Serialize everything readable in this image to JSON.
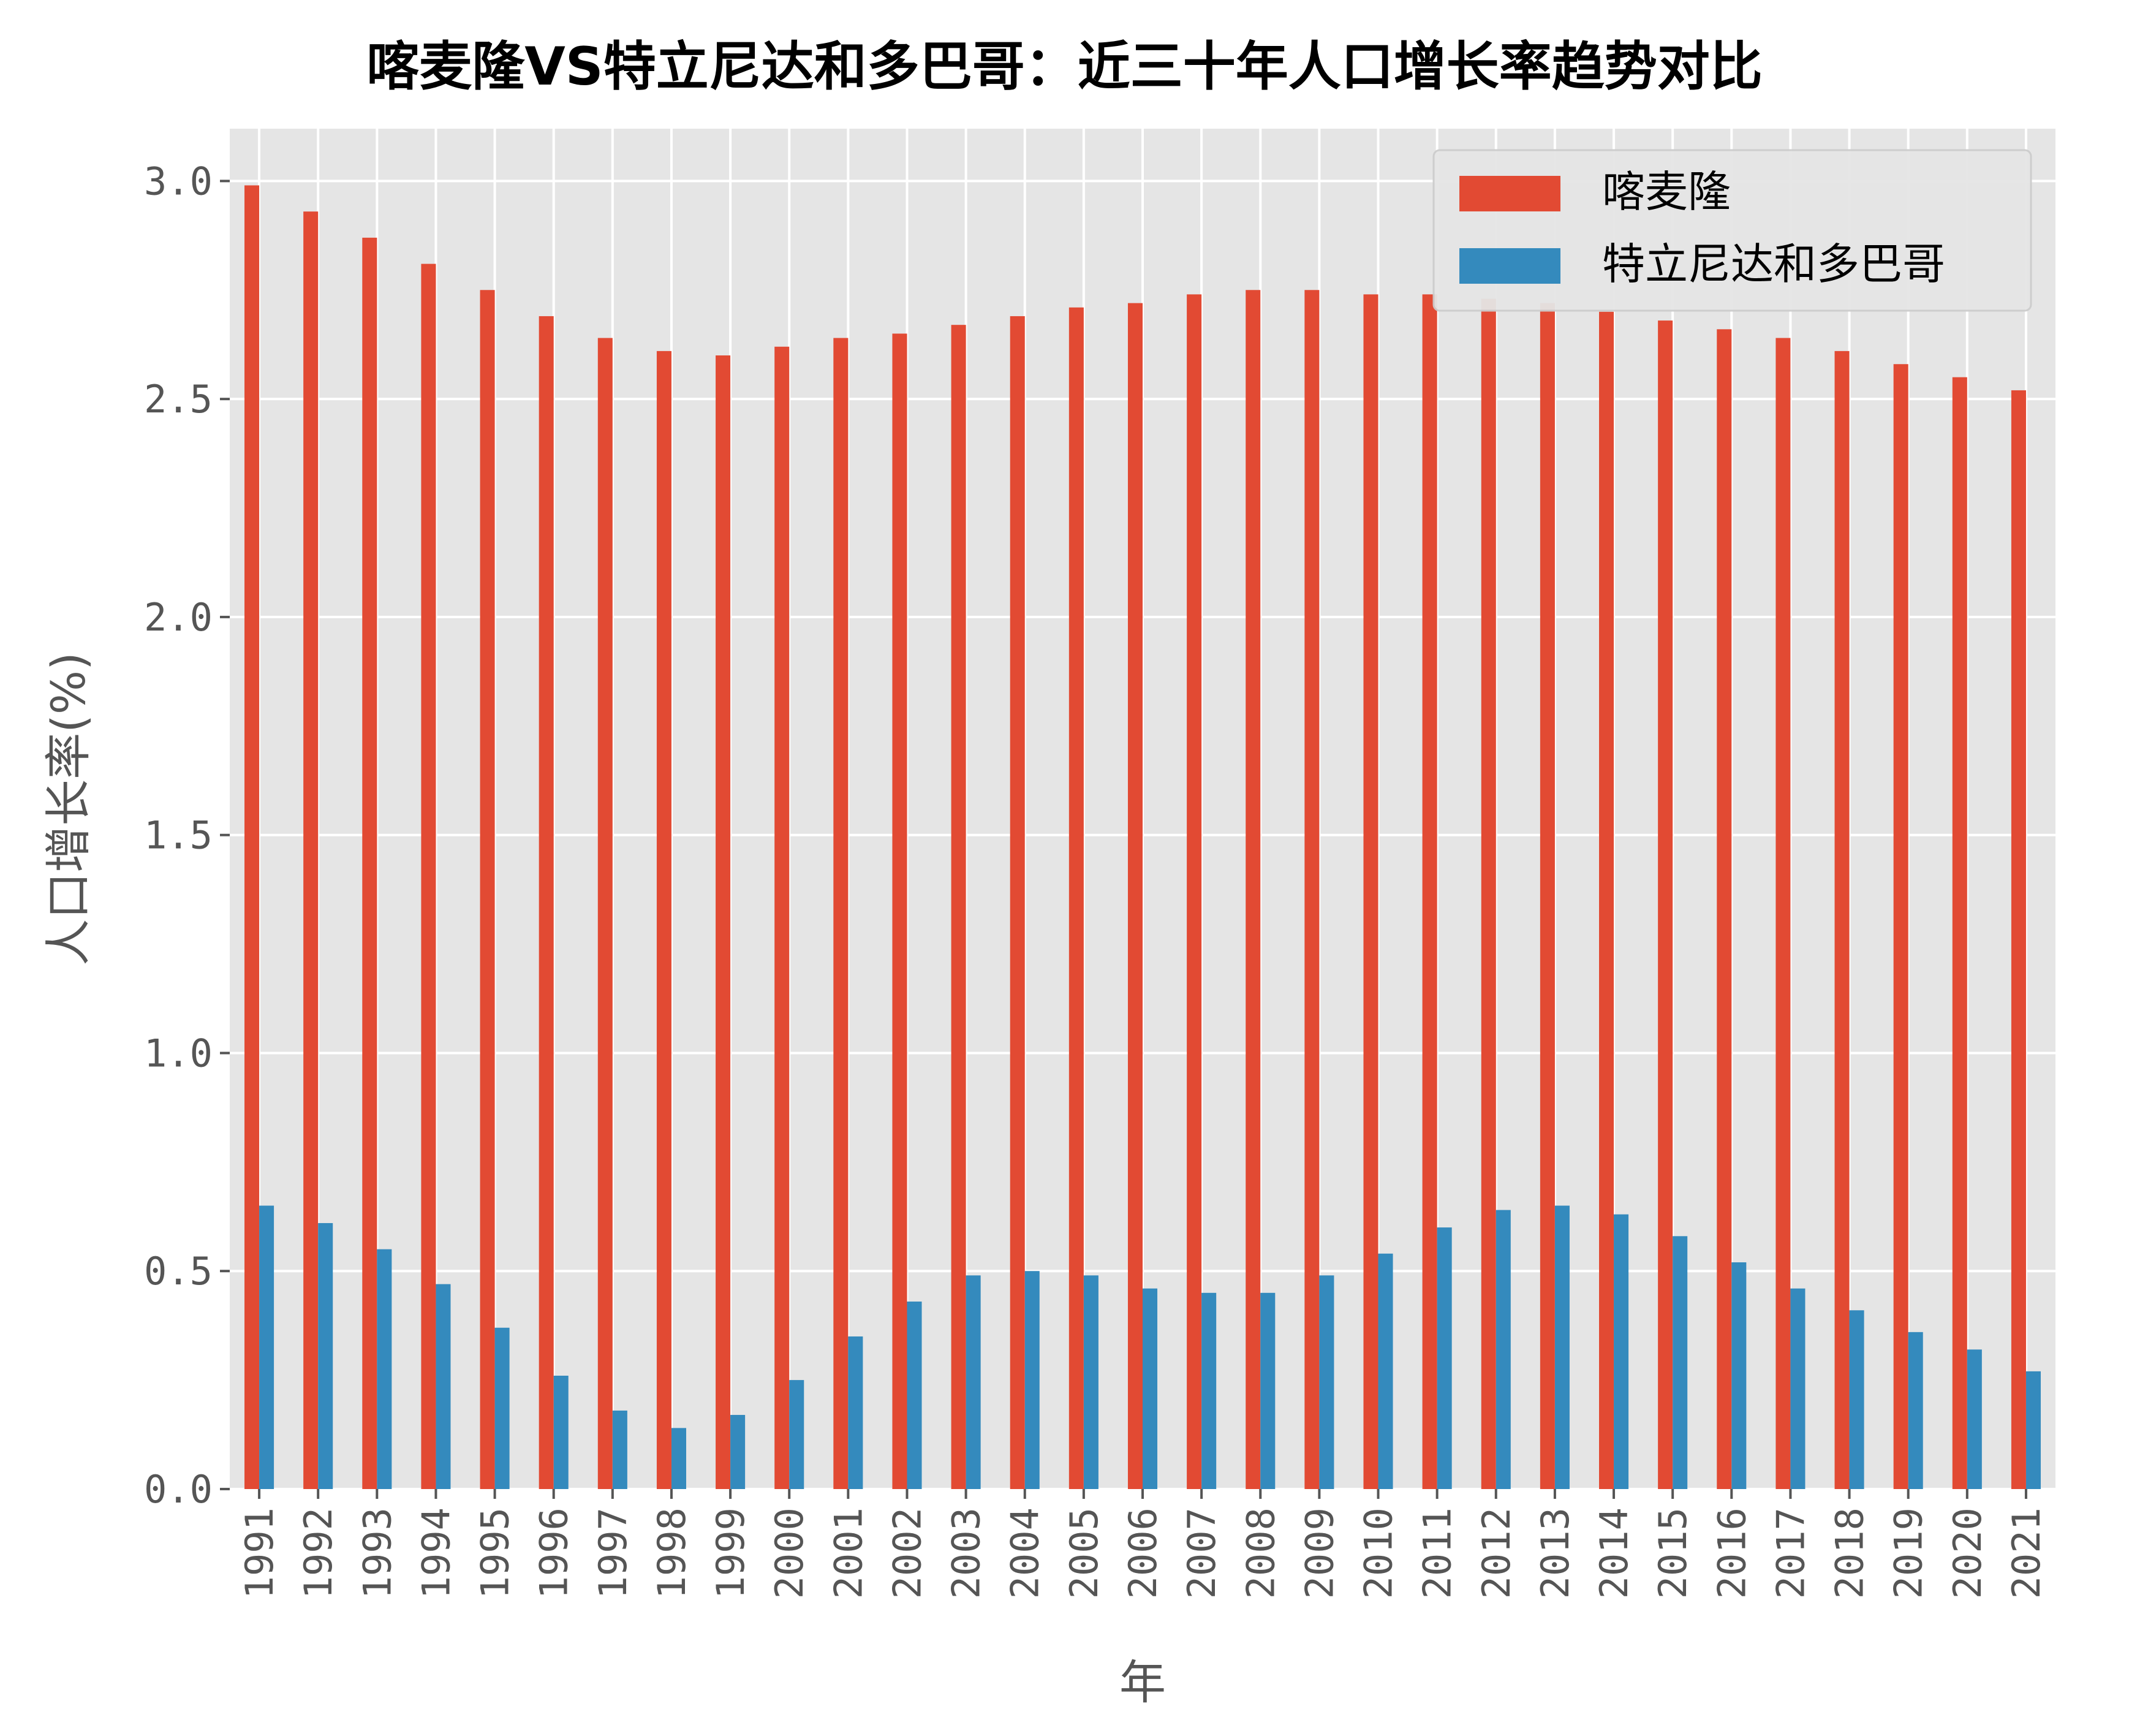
{
  "chart_data": {
    "type": "bar",
    "title": "喀麦隆VS特立尼达和多巴哥：近三十年人口增长率趋势对比",
    "xlabel": "年",
    "ylabel": "人口增长率(%)",
    "ylim": [
      0,
      3.12
    ],
    "yticks": [
      "0.0",
      "0.5",
      "1.0",
      "1.5",
      "2.0",
      "2.5",
      "3.0"
    ],
    "grid": true,
    "legend_position": "top-right",
    "categories": [
      "1991",
      "1992",
      "1993",
      "1994",
      "1995",
      "1996",
      "1997",
      "1998",
      "1999",
      "2000",
      "2001",
      "2002",
      "2003",
      "2004",
      "2005",
      "2006",
      "2007",
      "2008",
      "2009",
      "2010",
      "2011",
      "2012",
      "2013",
      "2014",
      "2015",
      "2016",
      "2017",
      "2018",
      "2019",
      "2020",
      "2021"
    ],
    "series": [
      {
        "name": "喀麦隆",
        "color": "#E24A33",
        "values": [
          2.99,
          2.93,
          2.87,
          2.81,
          2.75,
          2.69,
          2.64,
          2.61,
          2.6,
          2.62,
          2.64,
          2.65,
          2.67,
          2.69,
          2.71,
          2.72,
          2.74,
          2.75,
          2.75,
          2.74,
          2.74,
          2.73,
          2.72,
          2.7,
          2.68,
          2.66,
          2.64,
          2.61,
          2.58,
          2.55,
          2.52
        ]
      },
      {
        "name": "特立尼达和多巴哥",
        "color": "#348ABD",
        "values": [
          0.65,
          0.61,
          0.55,
          0.47,
          0.37,
          0.26,
          0.18,
          0.14,
          0.17,
          0.25,
          0.35,
          0.43,
          0.49,
          0.5,
          0.49,
          0.46,
          0.45,
          0.45,
          0.49,
          0.54,
          0.6,
          0.64,
          0.65,
          0.63,
          0.58,
          0.52,
          0.46,
          0.41,
          0.36,
          0.32,
          0.27
        ]
      }
    ]
  },
  "style": {
    "plot_bg": "#E5E5E5",
    "grid_color": "#FFFFFF",
    "tick_color": "#555555"
  }
}
